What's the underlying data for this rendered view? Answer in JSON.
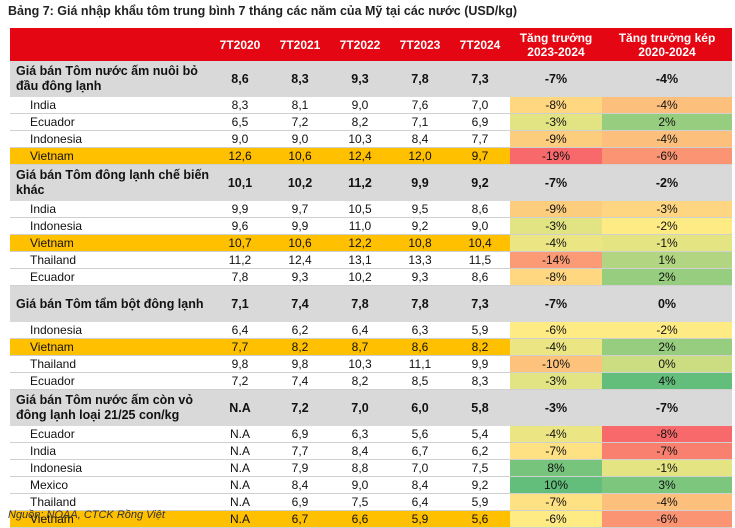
{
  "title": "Bảng 7: Giá nhập khẩu tôm trung bình 7 tháng các năm của Mỹ tại các nước (USD/kg)",
  "source": "Nguồn: NOAA, CTCK Rồng Việt",
  "headers": [
    "",
    "7T2020",
    "7T2021",
    "7T2022",
    "7T2023",
    "7T2024",
    "Tăng trưởng 2023-2024",
    "Tăng trưởng kép 2020-2024"
  ],
  "colors": {
    "header_bg": "#e40613",
    "group_bg": "#d9d9d9",
    "vietnam_highlight": "#ffc000",
    "gradient_red": "#f8696b",
    "gradient_yellow": "#ffeb84",
    "gradient_green": "#63be7b"
  },
  "groups": [
    {
      "label": "Giá bán Tôm nước ấm nuôi bỏ đầu đông lạnh",
      "values": [
        "8,6",
        "8,3",
        "9,3",
        "7,8",
        "7,3"
      ],
      "growth": "-7%",
      "cagr": "-4%",
      "rows": [
        {
          "name": "India",
          "values": [
            "8,3",
            "8,1",
            "9,0",
            "7,6",
            "7,0"
          ],
          "growth": "-8%",
          "cagr": "-4%"
        },
        {
          "name": "Ecuador",
          "values": [
            "6,5",
            "7,2",
            "8,2",
            "7,1",
            "6,9"
          ],
          "growth": "-3%",
          "cagr": "2%"
        },
        {
          "name": "Indonesia",
          "values": [
            "9,0",
            "9,0",
            "10,3",
            "8,4",
            "7,7"
          ],
          "growth": "-9%",
          "cagr": "-4%"
        },
        {
          "name": "Vietnam",
          "values": [
            "12,6",
            "10,6",
            "12,4",
            "12,0",
            "9,7"
          ],
          "growth": "-19%",
          "cagr": "-6%"
        }
      ]
    },
    {
      "label": "Giá bán Tôm đông lạnh chế biến khác",
      "values": [
        "10,1",
        "10,2",
        "11,2",
        "9,9",
        "9,2"
      ],
      "growth": "-7%",
      "cagr": "-2%",
      "rows": [
        {
          "name": "India",
          "values": [
            "9,9",
            "9,7",
            "10,5",
            "9,5",
            "8,6"
          ],
          "growth": "-9%",
          "cagr": "-3%"
        },
        {
          "name": "Indonesia",
          "values": [
            "9,6",
            "9,9",
            "11,0",
            "9,2",
            "9,0"
          ],
          "growth": "-3%",
          "cagr": "-2%"
        },
        {
          "name": "Vietnam",
          "values": [
            "10,7",
            "10,6",
            "12,2",
            "10,8",
            "10,4"
          ],
          "growth": "-4%",
          "cagr": "-1%"
        },
        {
          "name": "Thailand",
          "values": [
            "11,2",
            "12,4",
            "13,1",
            "13,3",
            "11,5"
          ],
          "growth": "-14%",
          "cagr": "1%"
        },
        {
          "name": "Ecuador",
          "values": [
            "7,8",
            "9,3",
            "10,2",
            "9,3",
            "8,6"
          ],
          "growth": "-8%",
          "cagr": "2%"
        }
      ]
    },
    {
      "label": "Giá bán Tôm tẩm bột đông lạnh",
      "values": [
        "7,1",
        "7,4",
        "7,8",
        "7,8",
        "7,3"
      ],
      "growth": "-7%",
      "cagr": "0%",
      "rows": [
        {
          "name": "Indonesia",
          "values": [
            "6,4",
            "6,2",
            "6,4",
            "6,3",
            "5,9"
          ],
          "growth": "-6%",
          "cagr": "-2%"
        },
        {
          "name": "Vietnam",
          "values": [
            "7,7",
            "8,2",
            "8,7",
            "8,6",
            "8,2"
          ],
          "growth": "-4%",
          "cagr": "2%"
        },
        {
          "name": "Thailand",
          "values": [
            "9,8",
            "9,8",
            "10,3",
            "11,1",
            "9,9"
          ],
          "growth": "-10%",
          "cagr": "0%"
        },
        {
          "name": "Ecuador",
          "values": [
            "7,2",
            "7,4",
            "8,2",
            "8,5",
            "8,3"
          ],
          "growth": "-3%",
          "cagr": "4%"
        }
      ]
    },
    {
      "label": "Giá bán Tôm nước ấm còn vỏ đông lạnh loại 21/25 con/kg",
      "values": [
        "N.A",
        "7,2",
        "7,0",
        "6,0",
        "5,8"
      ],
      "growth": "-3%",
      "cagr": "-7%",
      "rows": [
        {
          "name": "Ecuador",
          "values": [
            "N.A",
            "6,9",
            "6,3",
            "5,6",
            "5,4"
          ],
          "growth": "-4%",
          "cagr": "-8%"
        },
        {
          "name": "India",
          "values": [
            "N.A",
            "7,7",
            "8,4",
            "6,7",
            "6,2"
          ],
          "growth": "-7%",
          "cagr": "-7%"
        },
        {
          "name": "Indonesia",
          "values": [
            "N.A",
            "7,9",
            "8,8",
            "7,0",
            "7,5"
          ],
          "growth": "8%",
          "cagr": "-1%"
        },
        {
          "name": "Mexico",
          "values": [
            "N.A",
            "8,4",
            "9,0",
            "8,4",
            "9,2"
          ],
          "growth": "10%",
          "cagr": "3%"
        },
        {
          "name": "Thailand",
          "values": [
            "N.A",
            "6,9",
            "7,5",
            "6,4",
            "5,9"
          ],
          "growth": "-7%",
          "cagr": "-4%"
        },
        {
          "name": "Vietnam",
          "values": [
            "N.A",
            "6,7",
            "6,6",
            "5,9",
            "5,6"
          ],
          "growth": "-6%",
          "cagr": "-6%"
        }
      ]
    }
  ]
}
